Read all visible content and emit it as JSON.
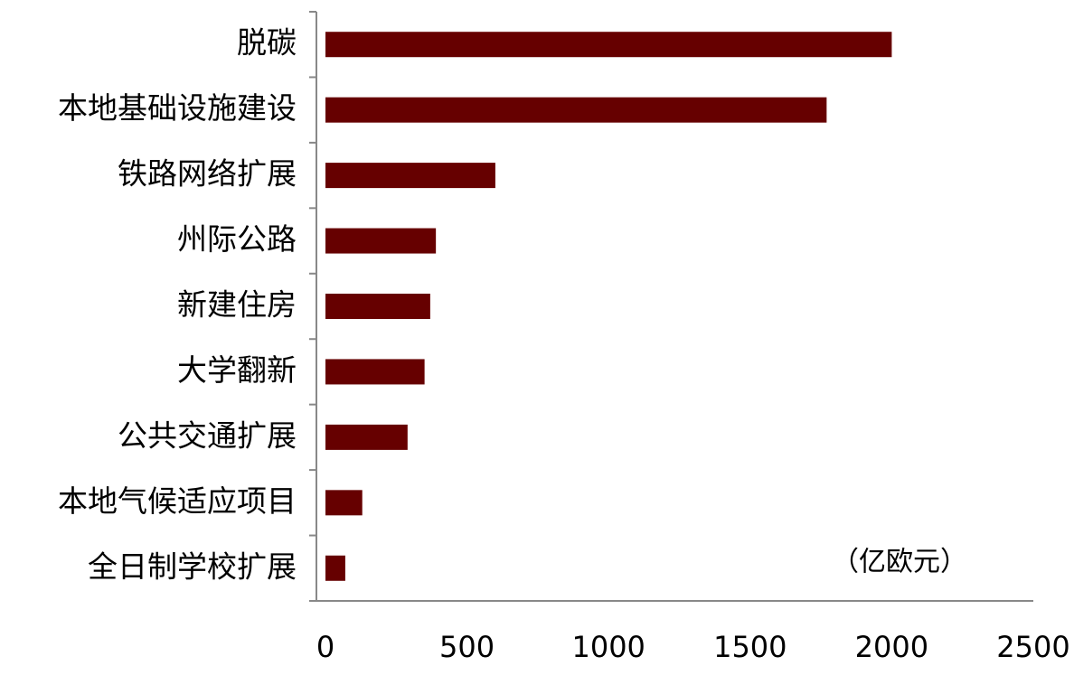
{
  "chart_data": {
    "type": "bar",
    "orientation": "horizontal",
    "categories": [
      "脱碳",
      "本地基础设施建设",
      "铁路网络扩展",
      "州际公路",
      "新建住房",
      "大学翻新",
      "公共交通扩展",
      "本地气候适应项目",
      "全日制学校扩展"
    ],
    "values": [
      2000,
      1770,
      600,
      390,
      370,
      350,
      290,
      130,
      70
    ],
    "color": "#660000",
    "xlim": [
      0,
      2500
    ],
    "xticks": [
      0,
      500,
      1000,
      1500,
      2000,
      2500
    ],
    "annotation": "（亿欧元）"
  }
}
